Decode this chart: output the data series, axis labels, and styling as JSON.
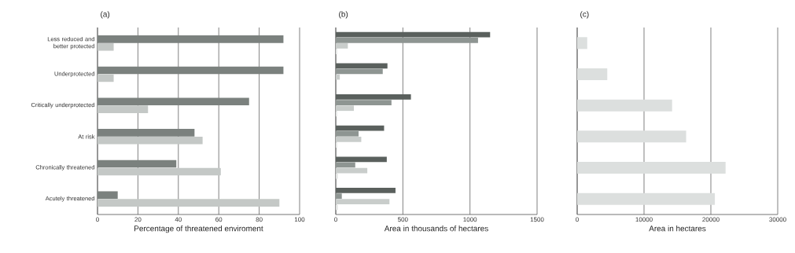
{
  "chart_data": [
    {
      "type": "bar",
      "orientation": "horizontal",
      "title": "(a)",
      "xlabel": "Percentage of threatened enviroment",
      "categories": [
        "Less reduced and better protected",
        "Underprotected",
        "Critically underprotected",
        "At risk",
        "Chronically threatened",
        "Acutely threatened"
      ],
      "series": [
        {
          "color": "#7b817e",
          "values": [
            92,
            92,
            75,
            48,
            39,
            10
          ]
        },
        {
          "color": "#c4c8c6",
          "values": [
            8,
            8,
            25,
            52,
            61,
            90
          ]
        }
      ],
      "xlim": [
        0,
        100
      ],
      "xticks": [
        0,
        20,
        40,
        60,
        80,
        100
      ],
      "grid": "x"
    },
    {
      "type": "bar",
      "orientation": "horizontal",
      "title": "(b)",
      "xlabel": "Area in thousands of hectares",
      "categories": [
        null,
        null,
        null,
        null,
        null,
        null
      ],
      "series": [
        {
          "color": "#5a605d",
          "values": [
            1150,
            385,
            560,
            360,
            380,
            445
          ]
        },
        {
          "color": "#8e9592",
          "values": [
            1060,
            350,
            415,
            170,
            145,
            45
          ]
        },
        {
          "color": "#c9cdcb",
          "values": [
            90,
            30,
            135,
            190,
            235,
            400
          ]
        },
        {
          "color": "#e2e4e3",
          "values": [
            10,
            null,
            10,
            10,
            15,
            15
          ]
        }
      ],
      "xlim": [
        0,
        1500
      ],
      "xticks": [
        0,
        500,
        1000,
        1500
      ],
      "grid": "x",
      "tick_labels": "x"
    },
    {
      "type": "bar",
      "orientation": "horizontal",
      "title": "(c)",
      "xlabel": "Area in hectares",
      "categories": [
        null,
        null,
        null,
        null,
        null,
        null
      ],
      "series": [
        {
          "color": "#dcdfde",
          "values": [
            1500,
            4500,
            14200,
            16300,
            22200,
            20600
          ]
        }
      ],
      "xlim": [
        0,
        30000
      ],
      "xticks": [
        0,
        10000,
        20000,
        30000
      ],
      "grid": "x",
      "tick_labels": "x"
    }
  ]
}
